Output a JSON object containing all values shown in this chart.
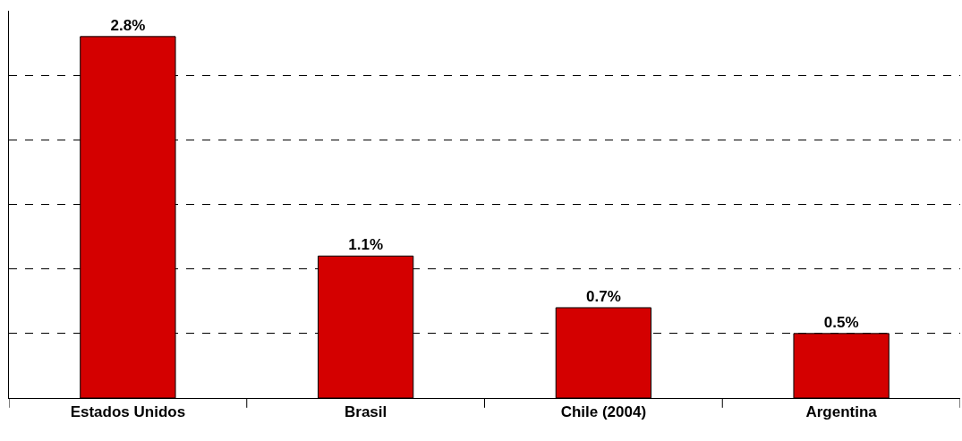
{
  "chart_data": {
    "type": "bar",
    "categories": [
      "Estados Unidos",
      "Brasil",
      "Chile (2004)",
      "Argentina"
    ],
    "values": [
      2.8,
      1.1,
      0.7,
      0.5
    ],
    "value_labels": [
      "2.8%",
      "1.1%",
      "0.7%",
      "0.5%"
    ],
    "color": "#d40000",
    "ylim": [
      0,
      3
    ],
    "yticks": [
      {
        "value": 0.5,
        "label": null
      },
      {
        "value": 1,
        "label": null
      },
      {
        "value": 1.5,
        "label": null
      },
      {
        "value": 2,
        "label": null
      },
      {
        "value": 2.5,
        "label": null
      }
    ],
    "grid": "y",
    "tick_labels": "x"
  }
}
